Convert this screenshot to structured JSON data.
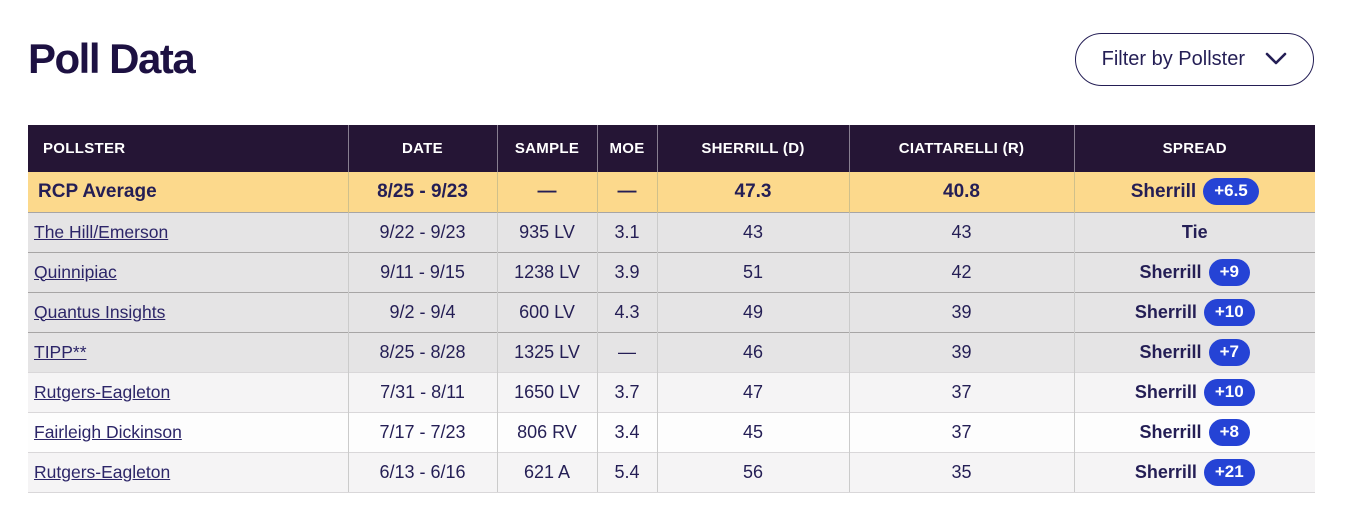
{
  "page": {
    "title": "Poll Data"
  },
  "filter": {
    "label": "Filter by Pollster",
    "icon": "chevron-down-icon"
  },
  "colors": {
    "header_bg": "#251535",
    "average_row_bg": "#fcd98c",
    "pill_bg": "#2543d5",
    "text": "#241e55",
    "link": "#2c2568"
  },
  "table": {
    "columns": [
      {
        "key": "pollster",
        "label": "POLLSTER"
      },
      {
        "key": "date",
        "label": "DATE"
      },
      {
        "key": "sample",
        "label": "SAMPLE"
      },
      {
        "key": "moe",
        "label": "MOE"
      },
      {
        "key": "sherrill",
        "label": "SHERRILL (D)"
      },
      {
        "key": "ciattarelli",
        "label": "CIATTARELLI (R)"
      },
      {
        "key": "spread",
        "label": "SPREAD"
      }
    ],
    "rows": [
      {
        "pollster": "RCP Average",
        "is_link": false,
        "style": "average",
        "date": "8/25 - 9/23",
        "sample": "—",
        "moe": "—",
        "sherrill": "47.3",
        "ciattarelli": "40.8",
        "spread": {
          "winner": "Sherrill",
          "margin": "+6.5"
        }
      },
      {
        "pollster": "The Hill/Emerson",
        "is_link": true,
        "style": "included",
        "date": "9/22 - 9/23",
        "sample": "935 LV",
        "moe": "3.1",
        "sherrill": "43",
        "ciattarelli": "43",
        "spread": {
          "winner": "Tie",
          "margin": ""
        }
      },
      {
        "pollster": "Quinnipiac",
        "is_link": true,
        "style": "included",
        "date": "9/11 - 9/15",
        "sample": "1238 LV",
        "moe": "3.9",
        "sherrill": "51",
        "ciattarelli": "42",
        "spread": {
          "winner": "Sherrill",
          "margin": "+9"
        }
      },
      {
        "pollster": "Quantus Insights",
        "is_link": true,
        "style": "included",
        "date": "9/2 - 9/4",
        "sample": "600 LV",
        "moe": "4.3",
        "sherrill": "49",
        "ciattarelli": "39",
        "spread": {
          "winner": "Sherrill",
          "margin": "+10"
        }
      },
      {
        "pollster": "TIPP**",
        "is_link": true,
        "style": "included",
        "date": "8/25 - 8/28",
        "sample": "1325 LV",
        "moe": "—",
        "sherrill": "46",
        "ciattarelli": "39",
        "spread": {
          "winner": "Sherrill",
          "margin": "+7"
        }
      },
      {
        "pollster": "Rutgers-Eagleton",
        "is_link": true,
        "style": "light",
        "date": "7/31 - 8/11",
        "sample": "1650 LV",
        "moe": "3.7",
        "sherrill": "47",
        "ciattarelli": "37",
        "spread": {
          "winner": "Sherrill",
          "margin": "+10"
        }
      },
      {
        "pollster": "Fairleigh Dickinson",
        "is_link": true,
        "style": "white",
        "date": "7/17 - 7/23",
        "sample": "806 RV",
        "moe": "3.4",
        "sherrill": "45",
        "ciattarelli": "37",
        "spread": {
          "winner": "Sherrill",
          "margin": "+8"
        }
      },
      {
        "pollster": "Rutgers-Eagleton",
        "is_link": true,
        "style": "light",
        "date": "6/13 - 6/16",
        "sample": "621 A",
        "moe": "5.4",
        "sherrill": "56",
        "ciattarelli": "35",
        "spread": {
          "winner": "Sherrill",
          "margin": "+21"
        }
      }
    ]
  }
}
